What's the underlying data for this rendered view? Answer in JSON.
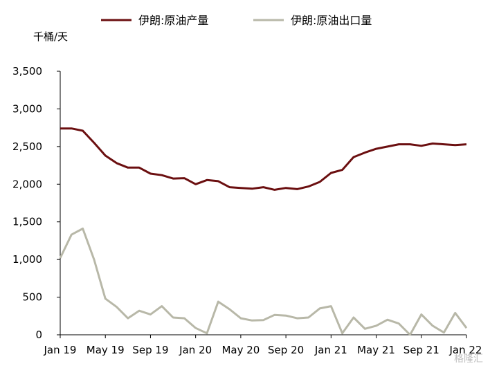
{
  "legend_position": "top",
  "watermark_text": "格隆汇",
  "chart_data": {
    "type": "line",
    "title": "",
    "ylabel": "千桶/天",
    "xlabel": "",
    "ylim": [
      0,
      3500
    ],
    "yticks": [
      0,
      500,
      1000,
      1500,
      2000,
      2500,
      3000,
      3500
    ],
    "ytick_labels": [
      "0",
      "500",
      "1,000",
      "1,500",
      "2,000",
      "2,500",
      "3,000",
      "3,500"
    ],
    "xtick_labels": [
      "Jan 19",
      "May 19",
      "Sep 19",
      "Jan 20",
      "May 20",
      "Sep 20",
      "Jan 21",
      "May 21",
      "Sep 21",
      "Jan 22"
    ],
    "x": [
      "2019-01",
      "2019-02",
      "2019-03",
      "2019-04",
      "2019-05",
      "2019-06",
      "2019-07",
      "2019-08",
      "2019-09",
      "2019-10",
      "2019-11",
      "2019-12",
      "2020-01",
      "2020-02",
      "2020-03",
      "2020-04",
      "2020-05",
      "2020-06",
      "2020-07",
      "2020-08",
      "2020-09",
      "2020-10",
      "2020-11",
      "2020-12",
      "2021-01",
      "2021-02",
      "2021-03",
      "2021-04",
      "2021-05",
      "2021-06",
      "2021-07",
      "2021-08",
      "2021-09",
      "2021-10",
      "2021-11",
      "2021-12",
      "2022-01"
    ],
    "grid": false,
    "series": [
      {
        "name": "伊朗:原油产量",
        "color": "#6b0f10",
        "values": [
          2740,
          2740,
          2710,
          2550,
          2380,
          2280,
          2220,
          2220,
          2140,
          2120,
          2075,
          2080,
          2000,
          2055,
          2040,
          1960,
          1950,
          1940,
          1960,
          1925,
          1950,
          1935,
          1970,
          2030,
          2150,
          2190,
          2360,
          2420,
          2470,
          2500,
          2530,
          2530,
          2510,
          2540,
          2530,
          2520,
          2530
        ]
      },
      {
        "name": "伊朗:原油出口量",
        "color": "#b8b8a8",
        "values": [
          1020,
          1330,
          1410,
          1000,
          480,
          370,
          220,
          320,
          270,
          380,
          230,
          220,
          90,
          20,
          440,
          340,
          220,
          190,
          195,
          265,
          255,
          220,
          230,
          350,
          380,
          20,
          230,
          80,
          120,
          200,
          150,
          0,
          270,
          120,
          30,
          290,
          90
        ]
      }
    ]
  }
}
